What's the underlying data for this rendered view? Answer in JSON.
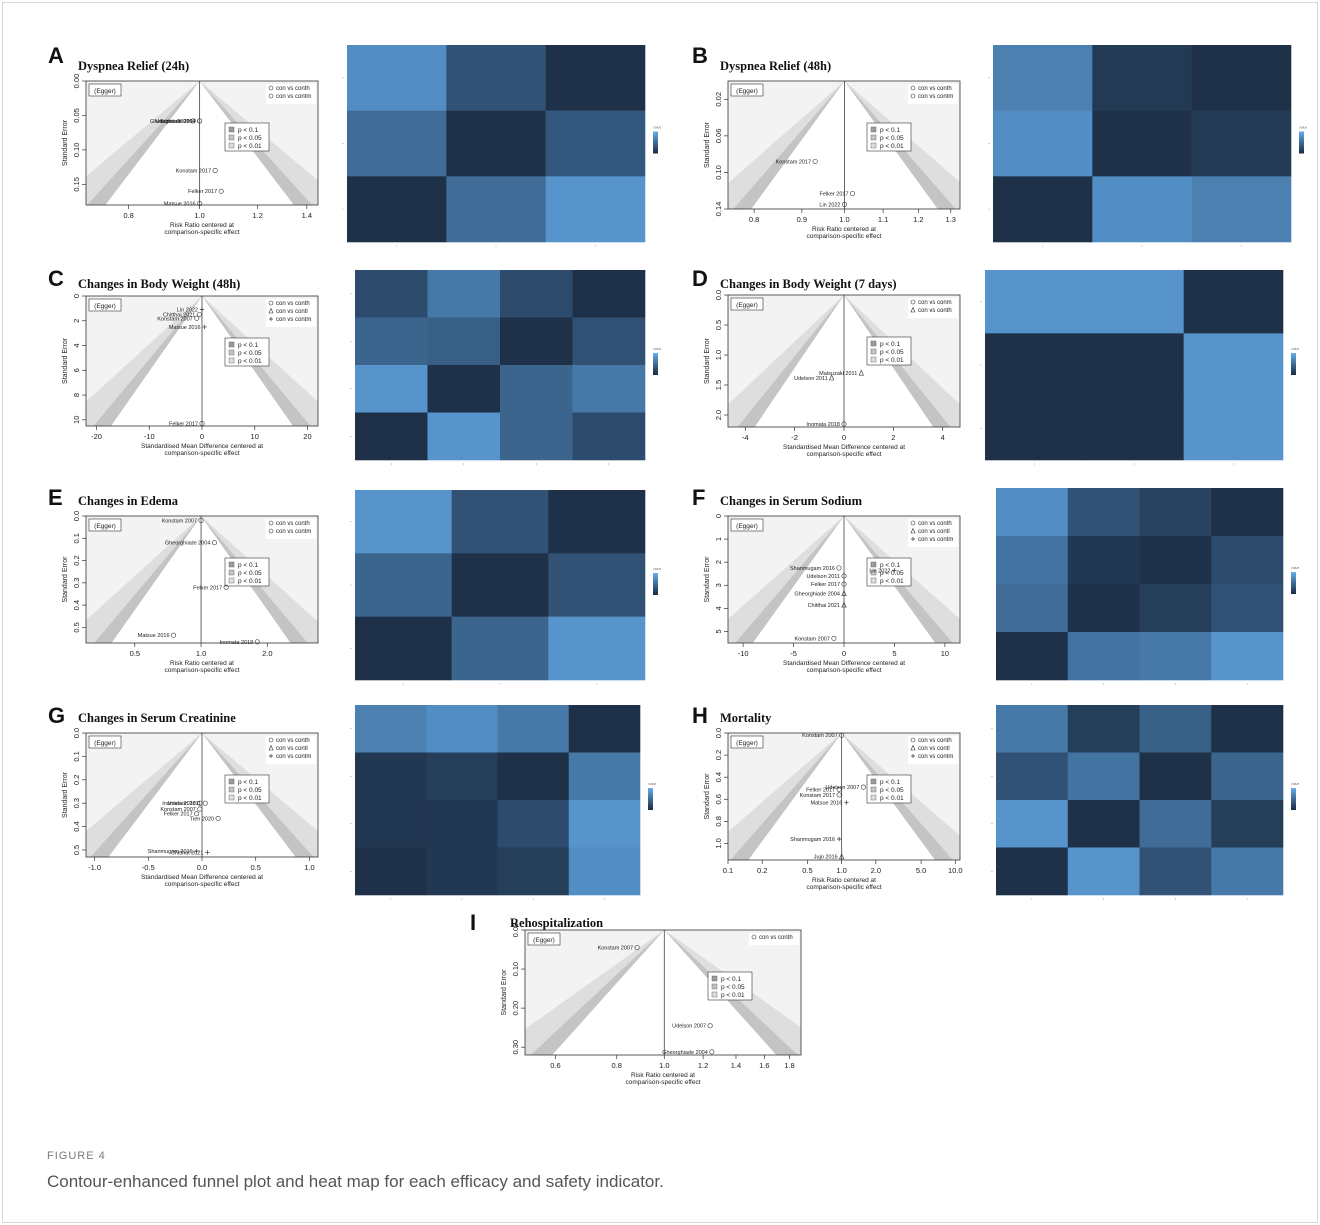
{
  "figure": {
    "label": "FIGURE 4",
    "caption": "Contour-enhanced funnel plot and heat map for each efficacy and safety indicator."
  },
  "colors": {
    "heat_light": "#65aeee",
    "heat_dark": "#1a2a40",
    "contour_dark": "#9c9c9c",
    "contour_mid": "#c4c4c4",
    "contour_light": "#dedede",
    "bg_light": "#f3f3f3"
  },
  "chart_data": [
    {
      "panel": "A",
      "title": "Dyspnea Relief (24h)",
      "type": "scatter",
      "xlabel": "Risk Ratio centered at\ncomparison-specific effect",
      "ylabel": "Standard Error",
      "xscale": "log",
      "xlim": [
        0.7,
        1.45
      ],
      "ylim": [
        0,
        0.18
      ],
      "xticks": [
        0.8,
        1.0,
        1.2,
        1.4
      ],
      "xticklabels": [
        "0.8",
        "1.0",
        "1.2",
        "1.4"
      ],
      "yticks": [
        0,
        0.05,
        0.1,
        0.15
      ],
      "yticklabels": [
        "0.00",
        "0.05",
        "0.10",
        "0.15"
      ],
      "egger": "(Egger)",
      "legend": [
        {
          "marker": "circle",
          "label": "con vs conth"
        },
        {
          "marker": "circle",
          "label": "con vs contm"
        }
      ],
      "contours": [
        "p < 0.1",
        "p < 0.05",
        "p < 0.01"
      ],
      "points": [
        {
          "label": "Gheorghiade 2004",
          "x": 1.0,
          "y": 0.058,
          "marker": "circle"
        },
        {
          "label": "Udelson 2007",
          "x": 0.98,
          "y": 0.058,
          "marker": "circle"
        },
        {
          "label": "Konstam 2007",
          "x": 1.0,
          "y": 0.058,
          "marker": "circle"
        },
        {
          "label": "Konstam 2017",
          "x": 1.05,
          "y": 0.13,
          "marker": "circle"
        },
        {
          "label": "Felker 2017",
          "x": 1.07,
          "y": 0.16,
          "marker": "circle"
        },
        {
          "label": "Matsue 2016",
          "x": 1.0,
          "y": 0.178,
          "marker": "circle"
        }
      ],
      "heatmap": {
        "rows": 3,
        "cols": 3,
        "legend_title": "value",
        "values": [
          [
            0.75,
            0.3,
            0.05
          ],
          [
            0.5,
            0.05,
            0.35
          ],
          [
            0.05,
            0.5,
            0.8
          ]
        ]
      }
    },
    {
      "panel": "B",
      "title": "Dyspnea Relief (48h)",
      "type": "scatter",
      "xlabel": "Risk Ratio centered at\ncomparison-specific effect",
      "ylabel": "Standard Error",
      "xscale": "log",
      "xlim": [
        0.75,
        1.33
      ],
      "ylim": [
        0,
        0.14
      ],
      "xticks": [
        0.8,
        0.9,
        1.0,
        1.1,
        1.2,
        1.3
      ],
      "xticklabels": [
        "0.8",
        "0.9",
        "1.0",
        "1.1",
        "1.2",
        "1.3"
      ],
      "yticks": [
        0.02,
        0.06,
        0.1,
        0.14
      ],
      "yticklabels": [
        "0.02",
        "0.06",
        "0.10",
        "0.14"
      ],
      "egger": "(Egger)",
      "legend": [
        {
          "marker": "circle",
          "label": "con vs conth"
        },
        {
          "marker": "circle",
          "label": "con vs contm"
        }
      ],
      "contours": [
        "p < 0.1",
        "p < 0.05",
        "p < 0.01"
      ],
      "points": [
        {
          "label": "Konstam 2017",
          "x": 0.93,
          "y": 0.088,
          "marker": "circle"
        },
        {
          "label": "Felker 2017",
          "x": 1.02,
          "y": 0.123,
          "marker": "circle"
        },
        {
          "label": "Lin 2022",
          "x": 1.0,
          "y": 0.135,
          "marker": "circle"
        }
      ],
      "heatmap": {
        "rows": 3,
        "cols": 3,
        "legend_title": "value",
        "values": [
          [
            0.65,
            0.12,
            0.05
          ],
          [
            0.75,
            0.05,
            0.12
          ],
          [
            0.05,
            0.75,
            0.65
          ]
        ]
      }
    },
    {
      "panel": "C",
      "title": "Changes in Body Weight  (48h)",
      "type": "scatter",
      "xlabel": "Standardised Mean Difference centered at\ncomparison-specific effect",
      "ylabel": "Standard Error",
      "xscale": "linear",
      "xlim": [
        -22,
        22
      ],
      "ylim": [
        0,
        10.5
      ],
      "xticks": [
        -20,
        -10,
        0,
        10,
        20
      ],
      "xticklabels": [
        "-20",
        "-10",
        "0",
        "10",
        "20"
      ],
      "yticks": [
        0,
        2,
        4,
        6,
        8,
        10
      ],
      "yticklabels": [
        "0",
        "2",
        "4",
        "6",
        "8",
        "10"
      ],
      "egger": "(Egger)",
      "legend": [
        {
          "marker": "circle",
          "label": "con vs conth"
        },
        {
          "marker": "triangle",
          "label": "con vs contl"
        },
        {
          "marker": "plus",
          "label": "con vs contm"
        }
      ],
      "contours": [
        "p < 0.1",
        "p < 0.05",
        "p < 0.01"
      ],
      "points": [
        {
          "label": "Lin 2022",
          "x": 0,
          "y": 1.1,
          "marker": "plus"
        },
        {
          "label": "Chitthai 2021",
          "x": -0.5,
          "y": 1.5,
          "marker": "circle"
        },
        {
          "label": "Konstam 2007",
          "x": -1,
          "y": 1.8,
          "marker": "circle"
        },
        {
          "label": "Matsue 2016",
          "x": 0.5,
          "y": 2.5,
          "marker": "plus"
        },
        {
          "label": "Felker 2017",
          "x": 0,
          "y": 10.3,
          "marker": "circle"
        }
      ],
      "heatmap": {
        "rows": 4,
        "cols": 4,
        "legend_title": "value",
        "values": [
          [
            0.25,
            0.6,
            0.25,
            0.05
          ],
          [
            0.45,
            0.4,
            0.05,
            0.3
          ],
          [
            0.8,
            0.05,
            0.45,
            0.6
          ],
          [
            0.05,
            0.8,
            0.45,
            0.25
          ]
        ]
      }
    },
    {
      "panel": "D",
      "title": "Changes in Body Weight  (7 days)",
      "type": "scatter",
      "xlabel": "Standardised Mean Difference centered at\ncomparison-specific effect",
      "ylabel": "Standard Error",
      "xscale": "linear",
      "xlim": [
        -4.7,
        4.7
      ],
      "ylim": [
        0,
        2.2
      ],
      "xticks": [
        -4,
        -2,
        0,
        2,
        4
      ],
      "xticklabels": [
        "-4",
        "-2",
        "0",
        "2",
        "4"
      ],
      "yticks": [
        0,
        0.5,
        1.0,
        1.5,
        2.0
      ],
      "yticklabels": [
        "0.0",
        "0.5",
        "1.0",
        "1.5",
        "2.0"
      ],
      "egger": "(Egger)",
      "legend": [
        {
          "marker": "circle",
          "label": "con vs conm"
        },
        {
          "marker": "triangle",
          "label": "con vs conth"
        }
      ],
      "contours": [
        "p < 0.1",
        "p < 0.05",
        "p < 0.01"
      ],
      "points": [
        {
          "label": "Matsuzaki 2011",
          "x": 0.7,
          "y": 1.3,
          "marker": "triangle"
        },
        {
          "label": "Udelson 2011",
          "x": -0.5,
          "y": 1.38,
          "marker": "triangle"
        },
        {
          "label": "Inomata 2018",
          "x": 0,
          "y": 2.15,
          "marker": "circle"
        }
      ],
      "heatmap": {
        "rows": 3,
        "cols": 3,
        "legend_title": "value",
        "values": [
          [
            0.8,
            0.8,
            0.05
          ],
          [
            0.05,
            0.05,
            0.8
          ],
          [
            0.05,
            0.05,
            0.8
          ]
        ]
      }
    },
    {
      "panel": "E",
      "title": "Changes in Edema",
      "type": "scatter",
      "xlabel": "Risk Ratio centered at\ncomparison-specific effect",
      "ylabel": "Standard Error",
      "xscale": "log",
      "xlim": [
        0.3,
        3.4
      ],
      "ylim": [
        0,
        0.57
      ],
      "xticks": [
        0.5,
        1.0,
        2.0
      ],
      "xticklabels": [
        "0.5",
        "1.0",
        "2.0"
      ],
      "yticks": [
        0,
        0.1,
        0.2,
        0.3,
        0.4,
        0.5
      ],
      "yticklabels": [
        "0.0",
        "0.1",
        "0.2",
        "0.3",
        "0.4",
        "0.5"
      ],
      "egger": "(Egger)",
      "legend": [
        {
          "marker": "circle",
          "label": "con vs conth"
        },
        {
          "marker": "circle",
          "label": "con vs contm"
        }
      ],
      "contours": [
        "p < 0.1",
        "p < 0.05",
        "p < 0.01"
      ],
      "points": [
        {
          "label": "Konstam 2007",
          "x": 1.0,
          "y": 0.02,
          "marker": "circle"
        },
        {
          "label": "Gheorghiade 2004",
          "x": 1.15,
          "y": 0.12,
          "marker": "circle"
        },
        {
          "label": "Felker 2017",
          "x": 1.3,
          "y": 0.32,
          "marker": "circle"
        },
        {
          "label": "Matsue 2016",
          "x": 0.75,
          "y": 0.535,
          "marker": "circle"
        },
        {
          "label": "Inomata 2018",
          "x": 1.8,
          "y": 0.565,
          "marker": "circle"
        }
      ],
      "heatmap": {
        "rows": 3,
        "cols": 3,
        "legend_title": "value",
        "values": [
          [
            0.8,
            0.3,
            0.05
          ],
          [
            0.45,
            0.05,
            0.3
          ],
          [
            0.05,
            0.45,
            0.8
          ]
        ]
      }
    },
    {
      "panel": "F",
      "title": "Changes in Serum Sodium",
      "type": "scatter",
      "xlabel": "Standardised Mean Difference centered at\ncomparison-specific effect",
      "ylabel": "Standard Error",
      "xscale": "linear",
      "xlim": [
        -11.5,
        11.5
      ],
      "ylim": [
        0,
        5.5
      ],
      "xticks": [
        -10,
        -5,
        0,
        5,
        10
      ],
      "xticklabels": [
        "-10",
        "-5",
        "0",
        "5",
        "10"
      ],
      "yticks": [
        0,
        1,
        2,
        3,
        4,
        5
      ],
      "yticklabels": [
        "0",
        "1",
        "2",
        "3",
        "4",
        "5"
      ],
      "egger": "(Egger)",
      "legend": [
        {
          "marker": "circle",
          "label": "con vs conth"
        },
        {
          "marker": "triangle",
          "label": "con vs contl"
        },
        {
          "marker": "plus",
          "label": "con vs contm"
        }
      ],
      "contours": [
        "p < 0.1",
        "p < 0.05",
        "p < 0.01"
      ],
      "points": [
        {
          "label": "Shanmugam 2016",
          "x": -0.5,
          "y": 2.25,
          "marker": "circle"
        },
        {
          "label": "Lin 2022",
          "x": 5,
          "y": 2.35,
          "marker": "plus"
        },
        {
          "label": "Udelson 2011",
          "x": 0,
          "y": 2.6,
          "marker": "circle"
        },
        {
          "label": "Felker 2017",
          "x": 0,
          "y": 2.95,
          "marker": "circle"
        },
        {
          "label": "Gheorghiade 2004",
          "x": 0,
          "y": 3.35,
          "marker": "triangle"
        },
        {
          "label": "Chitthai 2021",
          "x": 0,
          "y": 3.85,
          "marker": "triangle"
        },
        {
          "label": "Konstam 2007",
          "x": -1,
          "y": 5.3,
          "marker": "circle"
        }
      ],
      "heatmap": {
        "rows": 4,
        "cols": 4,
        "legend_title": "value",
        "values": [
          [
            0.75,
            0.3,
            0.2,
            0.05
          ],
          [
            0.55,
            0.1,
            0.05,
            0.25
          ],
          [
            0.5,
            0.05,
            0.15,
            0.3
          ],
          [
            0.05,
            0.55,
            0.6,
            0.8
          ]
        ]
      }
    },
    {
      "panel": "G",
      "title": "Changes in Serum Creatinine",
      "type": "scatter",
      "xlabel": "Standardised Mean Difference centered at\ncomparison-specific effect",
      "ylabel": "Standard Error",
      "xscale": "linear",
      "xlim": [
        -1.08,
        1.08
      ],
      "ylim": [
        0,
        0.53
      ],
      "xticks": [
        -1.0,
        -0.5,
        0.0,
        0.5,
        1.0
      ],
      "xticklabels": [
        "-1.0",
        "-0.5",
        "0.0",
        "0.5",
        "1.0"
      ],
      "yticks": [
        0,
        0.1,
        0.2,
        0.3,
        0.4,
        0.5
      ],
      "yticklabels": [
        "0.0",
        "0.1",
        "0.2",
        "0.3",
        "0.4",
        "0.5"
      ],
      "egger": "(Egger)",
      "legend": [
        {
          "marker": "circle",
          "label": "con vs conth"
        },
        {
          "marker": "triangle",
          "label": "con vs contl"
        },
        {
          "marker": "plus",
          "label": "con vs contm"
        }
      ],
      "contours": [
        "p < 0.1",
        "p < 0.05",
        "p < 0.01"
      ],
      "points": [
        {
          "label": "Inomata 2018",
          "x": -0.02,
          "y": 0.3,
          "marker": "circle"
        },
        {
          "label": "Udelson 2011",
          "x": 0.03,
          "y": 0.3,
          "marker": "circle"
        },
        {
          "label": "Konstam 2007",
          "x": -0.02,
          "y": 0.325,
          "marker": "circle"
        },
        {
          "label": "Felker 2017",
          "x": -0.05,
          "y": 0.345,
          "marker": "circle"
        },
        {
          "label": "Tien 2020",
          "x": 0.15,
          "y": 0.365,
          "marker": "circle"
        },
        {
          "label": "Shanmugam 2016",
          "x": -0.05,
          "y": 0.505,
          "marker": "plus"
        },
        {
          "label": "Chitthai 2021",
          "x": 0.05,
          "y": 0.51,
          "marker": "plus"
        }
      ],
      "heatmap": {
        "rows": 4,
        "cols": 4,
        "legend_title": "value",
        "values": [
          [
            0.65,
            0.75,
            0.6,
            0.05
          ],
          [
            0.1,
            0.15,
            0.05,
            0.6
          ],
          [
            0.1,
            0.1,
            0.25,
            0.8
          ],
          [
            0.05,
            0.1,
            0.15,
            0.75
          ]
        ]
      }
    },
    {
      "panel": "H",
      "title": "Mortality",
      "type": "scatter",
      "xlabel": "Risk Ratio centered at\ncomparison-specific effect",
      "ylabel": "Standard Error",
      "xscale": "log",
      "xlim": [
        0.1,
        11
      ],
      "ylim": [
        0,
        1.15
      ],
      "xticks": [
        0.1,
        0.2,
        0.5,
        1.0,
        2.0,
        5.0,
        10.0
      ],
      "xticklabels": [
        "0.1",
        "0.2",
        "0.5",
        "1.0",
        "2.0",
        "5.0",
        "10.0"
      ],
      "yticks": [
        0,
        0.2,
        0.4,
        0.6,
        0.8,
        1.0
      ],
      "yticklabels": [
        "0.0",
        "0.2",
        "0.4",
        "0.6",
        "0.8",
        "1.0"
      ],
      "egger": "(Egger)",
      "legend": [
        {
          "marker": "circle",
          "label": "con vs conth"
        },
        {
          "marker": "triangle",
          "label": "con vs contl"
        },
        {
          "marker": "plus",
          "label": "con vs contm"
        }
      ],
      "contours": [
        "p < 0.1",
        "p < 0.05",
        "p < 0.01"
      ],
      "points": [
        {
          "label": "Konstam 2007",
          "x": 1.0,
          "y": 0.02,
          "marker": "circle"
        },
        {
          "label": "Udelson 2007",
          "x": 1.55,
          "y": 0.49,
          "marker": "circle"
        },
        {
          "label": "Felker 2017",
          "x": 0.95,
          "y": 0.51,
          "marker": "circle"
        },
        {
          "label": "Konstam 2017",
          "x": 0.95,
          "y": 0.56,
          "marker": "circle"
        },
        {
          "label": "Matsue 2016",
          "x": 1.1,
          "y": 0.63,
          "marker": "plus"
        },
        {
          "label": "Shanmugam 2016",
          "x": 0.95,
          "y": 0.96,
          "marker": "plus"
        },
        {
          "label": "Jujo 2016",
          "x": 1.0,
          "y": 1.12,
          "marker": "triangle"
        }
      ],
      "heatmap": {
        "rows": 4,
        "cols": 4,
        "legend_title": "value",
        "values": [
          [
            0.6,
            0.15,
            0.4,
            0.05
          ],
          [
            0.3,
            0.55,
            0.05,
            0.45
          ],
          [
            0.8,
            0.05,
            0.5,
            0.15
          ],
          [
            0.05,
            0.8,
            0.3,
            0.6
          ]
        ]
      }
    },
    {
      "panel": "I",
      "title": "Rehospitalization",
      "type": "scatter",
      "xlabel": "Risk Ratio centered at\ncomparison-specific effect",
      "ylabel": "Standard Error",
      "xscale": "log",
      "xlim": [
        0.52,
        1.9
      ],
      "ylim": [
        0,
        0.32
      ],
      "xticks": [
        0.6,
        0.8,
        1.0,
        1.2,
        1.4,
        1.6,
        1.8
      ],
      "xticklabels": [
        "0.6",
        "0.8",
        "1.0",
        "1.2",
        "1.4",
        "1.6",
        "1.8"
      ],
      "yticks": [
        0,
        0.1,
        0.2,
        0.3
      ],
      "yticklabels": [
        "0.00",
        "0.10",
        "0.20",
        "0.30"
      ],
      "egger": "(Egger)",
      "legend": [
        {
          "marker": "circle",
          "label": "con vs conth"
        }
      ],
      "contours": [
        "p < 0.1",
        "p < 0.05",
        "p < 0.01"
      ],
      "points": [
        {
          "label": "Konstam 2007",
          "x": 0.88,
          "y": 0.045,
          "marker": "circle"
        },
        {
          "label": "Udelson 2007",
          "x": 1.24,
          "y": 0.245,
          "marker": "circle"
        },
        {
          "label": "Gheorghiade 2004",
          "x": 1.25,
          "y": 0.312,
          "marker": "circle"
        }
      ]
    }
  ]
}
